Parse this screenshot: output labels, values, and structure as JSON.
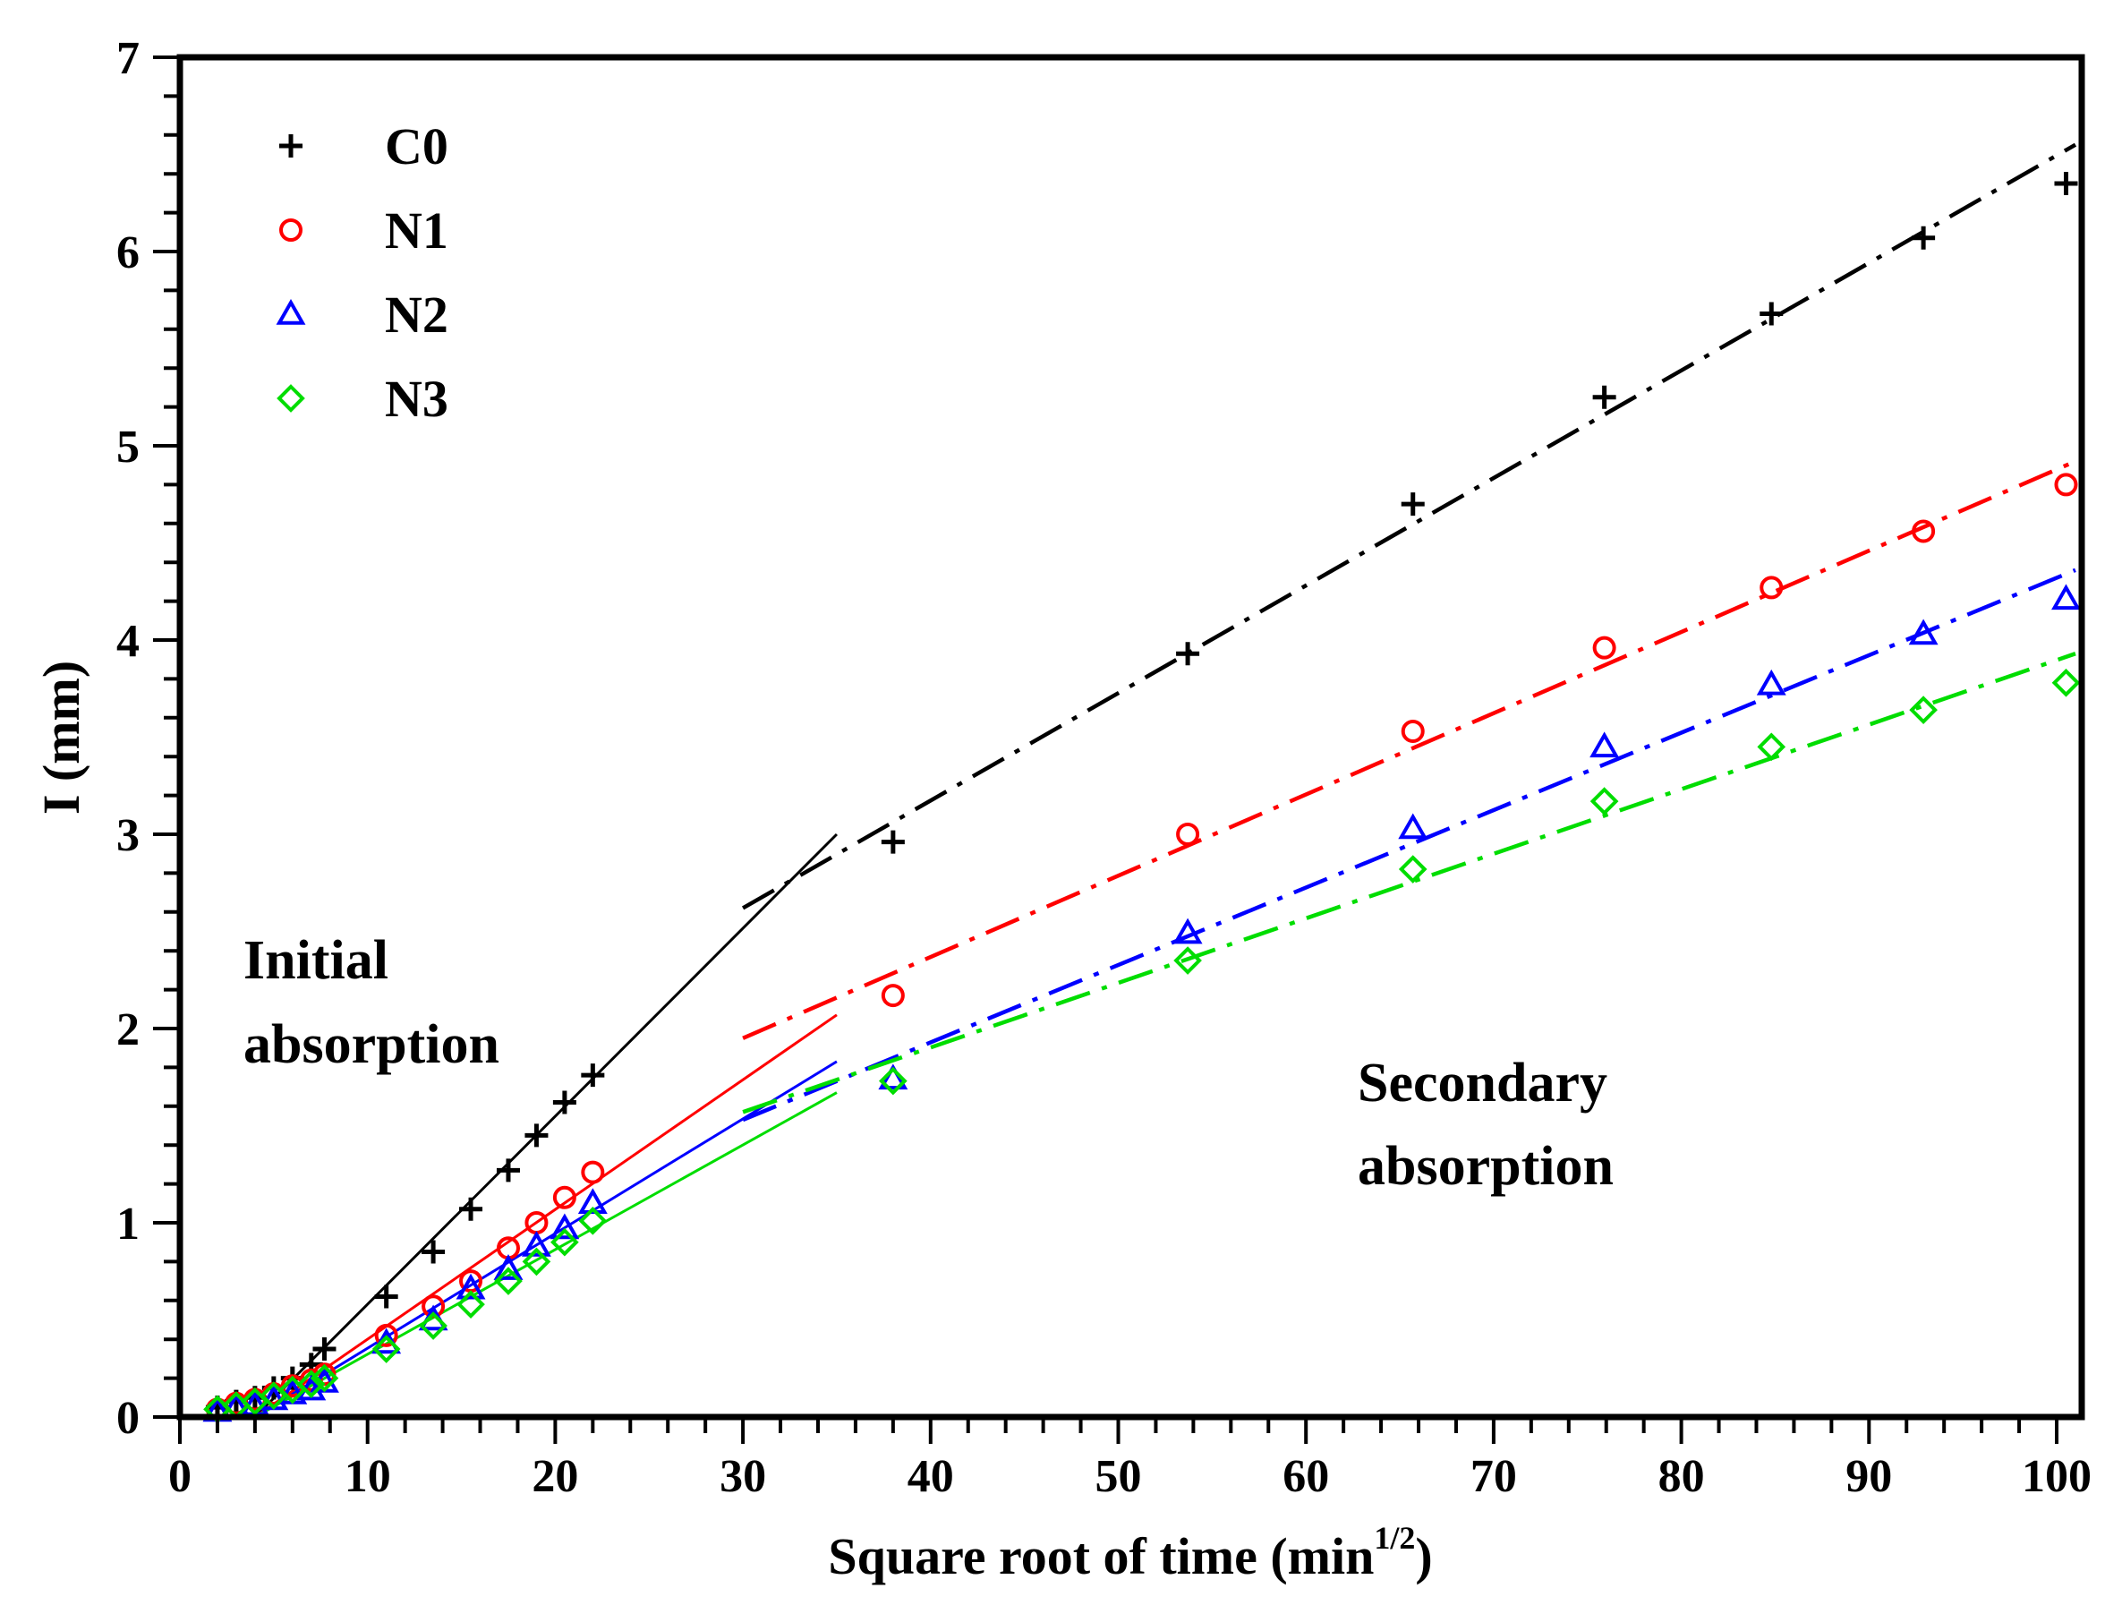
{
  "chart_data": {
    "type": "scatter",
    "title": "",
    "xlabel": "Square root of time (min",
    "xlabel_sup": "1/2",
    "xlabel_close": ")",
    "ylabel": "I (mm)",
    "xlim": [
      0,
      101
    ],
    "ylim": [
      0,
      7
    ],
    "xticks": [
      "0",
      "10",
      "20",
      "30",
      "40",
      "50",
      "60",
      "70",
      "80",
      "90",
      "100"
    ],
    "yticks": [
      "0",
      "1",
      "2",
      "3",
      "4",
      "5",
      "6",
      "7"
    ],
    "legend_position": "top-left",
    "annotations": [
      {
        "lines": [
          "Initial",
          "absorption"
        ]
      },
      {
        "lines": [
          "Secondary",
          "absorption"
        ]
      }
    ],
    "x": [
      2,
      3,
      4,
      5,
      6,
      7,
      7.7,
      11,
      13.5,
      15.5,
      17.5,
      19,
      20.5,
      22,
      38,
      53.7,
      65.7,
      75.9,
      84.8,
      92.9,
      100.5
    ],
    "series": [
      {
        "name": "C0",
        "marker": "plus",
        "color": "#000000",
        "values": [
          0.05,
          0.08,
          0.1,
          0.15,
          0.2,
          0.27,
          0.35,
          0.62,
          0.85,
          1.07,
          1.27,
          1.45,
          1.62,
          1.76,
          2.96,
          3.93,
          4.7,
          5.25,
          5.68,
          6.07,
          6.35
        ],
        "initial_fit": [
          [
            4,
            0
          ],
          [
            35,
            3.0
          ]
        ],
        "secondary_fit": [
          [
            30,
            2.62
          ],
          [
            101,
            6.55
          ]
        ]
      },
      {
        "name": "N1",
        "marker": "circle",
        "color": "#ff0000",
        "values": [
          0.04,
          0.07,
          0.09,
          0.12,
          0.16,
          0.19,
          0.22,
          0.42,
          0.57,
          0.7,
          0.87,
          1.0,
          1.13,
          1.26,
          2.17,
          3.0,
          3.53,
          3.96,
          4.27,
          4.56,
          4.8
        ],
        "initial_fit": [
          [
            4,
            0
          ],
          [
            35,
            2.07
          ]
        ],
        "secondary_fit": [
          [
            30,
            1.95
          ],
          [
            101,
            4.92
          ]
        ]
      },
      {
        "name": "N2",
        "marker": "triangle",
        "color": "#0000ff",
        "values": [
          0.03,
          0.05,
          0.06,
          0.09,
          0.12,
          0.14,
          0.18,
          0.38,
          0.5,
          0.66,
          0.76,
          0.88,
          0.97,
          1.1,
          1.74,
          2.49,
          3.03,
          3.45,
          3.77,
          4.03,
          4.21
        ],
        "initial_fit": [
          [
            4,
            0
          ],
          [
            35,
            1.83
          ]
        ],
        "secondary_fit": [
          [
            30,
            1.53
          ],
          [
            101,
            4.36
          ]
        ]
      },
      {
        "name": "N3",
        "marker": "diamond",
        "color": "#00dd00",
        "values": [
          0.04,
          0.06,
          0.08,
          0.11,
          0.14,
          0.17,
          0.2,
          0.35,
          0.47,
          0.58,
          0.7,
          0.8,
          0.9,
          1.01,
          1.73,
          2.35,
          2.82,
          3.17,
          3.45,
          3.64,
          3.78
        ],
        "initial_fit": [
          [
            4,
            0
          ],
          [
            35,
            1.67
          ]
        ],
        "secondary_fit": [
          [
            30,
            1.57
          ],
          [
            101,
            3.93
          ]
        ]
      }
    ]
  }
}
